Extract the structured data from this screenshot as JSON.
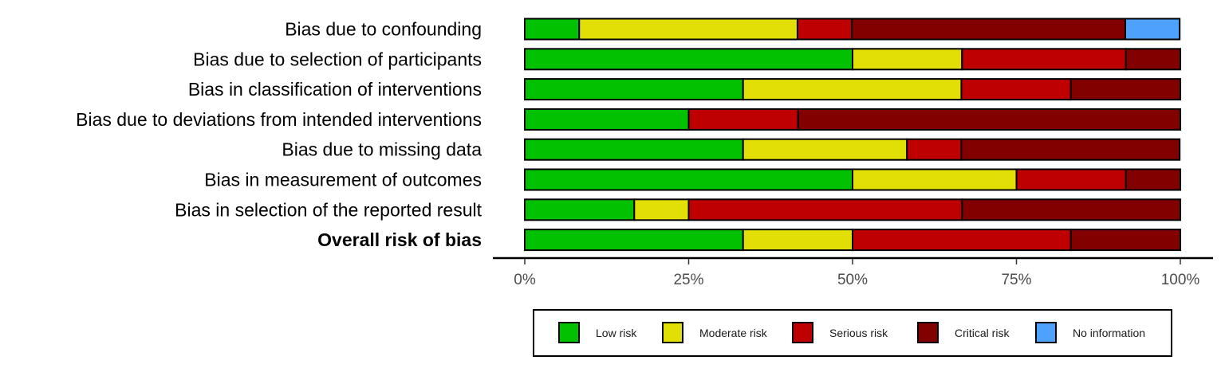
{
  "chart_data": {
    "type": "bar",
    "orientation": "horizontal",
    "stacked": true,
    "categories": [
      "Bias due to confounding",
      "Bias due to selection of participants",
      "Bias in classification of interventions",
      "Bias due to deviations from intended interventions",
      "Bias due to missing data",
      "Bias in measurement of outcomes",
      "Bias in selection of the reported result",
      "Overall risk of bias"
    ],
    "bold_categories": [
      "Overall risk of bias"
    ],
    "series": [
      {
        "name": "Low risk",
        "color": "#02c100",
        "values": [
          8.3,
          50,
          33.3,
          25,
          33.3,
          50,
          16.7,
          33.3
        ]
      },
      {
        "name": "Moderate risk",
        "color": "#e2df07",
        "values": [
          33.3,
          16.7,
          33.3,
          0,
          25,
          25,
          8.3,
          16.7
        ]
      },
      {
        "name": "Serious risk",
        "color": "#bf0000",
        "values": [
          8.3,
          25,
          16.7,
          16.7,
          8.3,
          16.7,
          41.7,
          33.3
        ]
      },
      {
        "name": "Critical risk",
        "color": "#820000",
        "values": [
          41.7,
          8.3,
          16.7,
          58.3,
          33.3,
          8.3,
          33.3,
          16.7
        ]
      },
      {
        "name": "No information",
        "color": "#4ea1fd",
        "values": [
          8.3,
          0,
          0,
          0,
          0,
          0,
          0,
          0
        ]
      }
    ],
    "xlim": [
      0,
      100
    ],
    "xticks": [
      "0%",
      "25%",
      "50%",
      "75%",
      "100%"
    ],
    "xtick_values": [
      0,
      25,
      50,
      75,
      100
    ],
    "legend_position": "bottom",
    "grid": false
  }
}
